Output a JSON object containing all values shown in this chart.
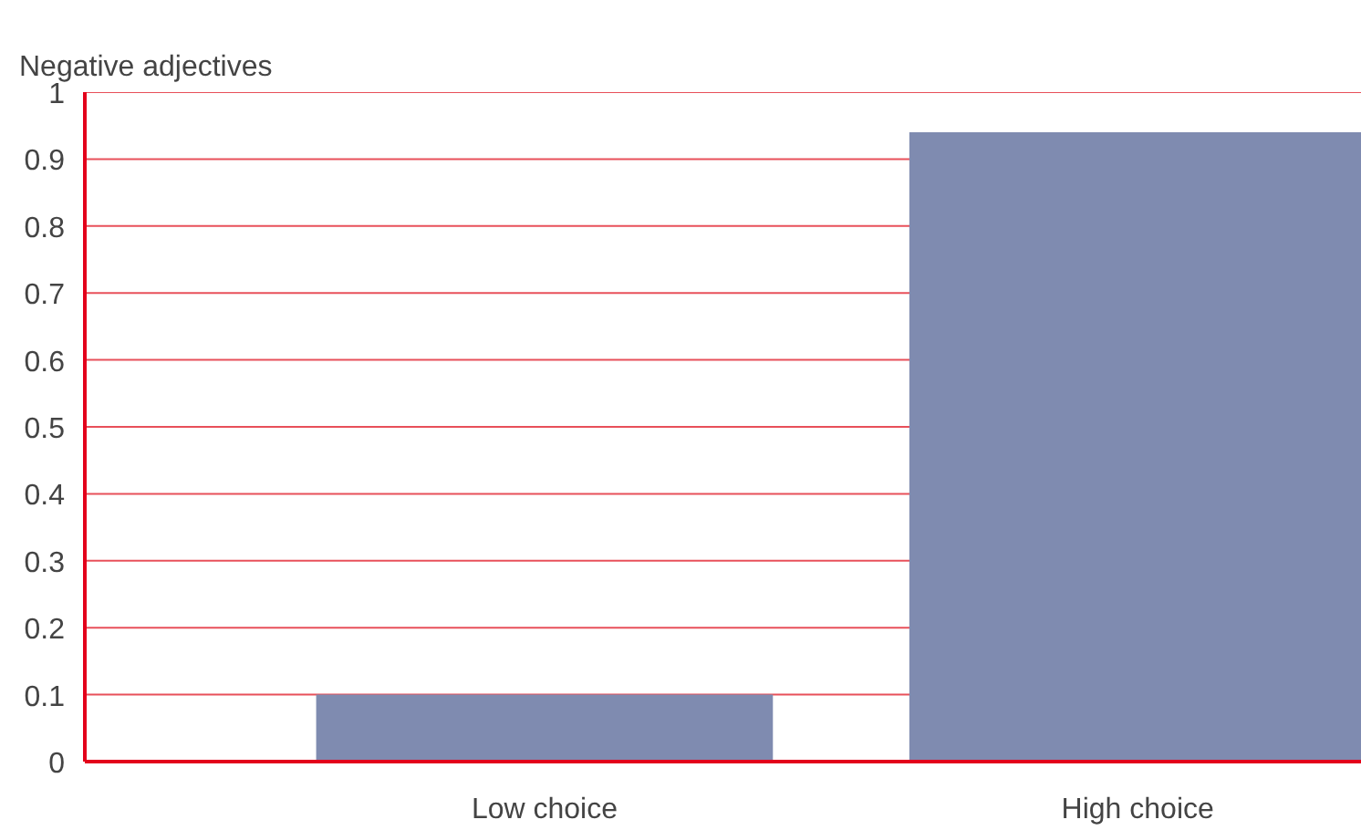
{
  "chart_data": {
    "type": "bar",
    "ylabel": "Negative adjectives",
    "categories": [
      "Low choice",
      "High choice"
    ],
    "values": [
      0.1,
      0.94
    ],
    "color": "#7f8bb0",
    "ylim": [
      0,
      1
    ],
    "yticks": [
      0,
      0.1,
      0.2,
      0.3,
      0.4,
      0.5,
      0.6,
      0.7,
      0.8,
      0.9,
      1
    ],
    "grid": "y"
  }
}
